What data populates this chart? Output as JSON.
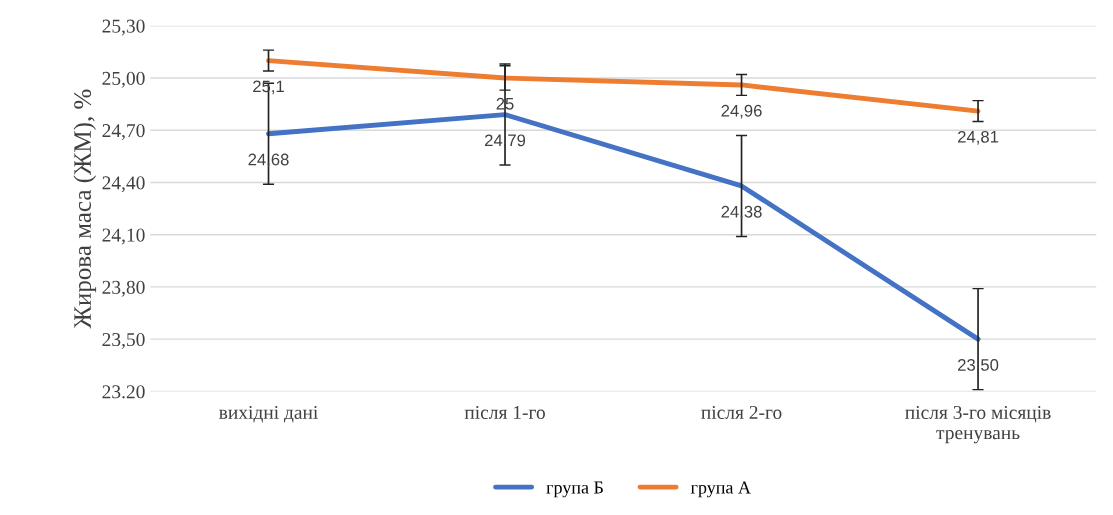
{
  "chart_data": {
    "type": "line",
    "ylabel": "Жирова маса (ЖМ), %",
    "categories": [
      "вихідні дані",
      "після 1-го",
      "після 2-го",
      "після 3-го місяців\nтренувань"
    ],
    "series": [
      {
        "name": "група Б",
        "color": "#4472c4",
        "values": [
          24.68,
          24.79,
          24.38,
          23.5
        ],
        "errors": [
          0.29,
          0.29,
          0.29,
          0.29
        ],
        "value_labels": [
          "24,68",
          "24,79",
          "24,38",
          "23,50"
        ]
      },
      {
        "name": "група А",
        "color": "#ed7d31",
        "values": [
          25.1,
          25,
          24.96,
          24.81
        ],
        "errors": [
          0.06,
          0.07,
          0.06,
          0.06
        ],
        "value_labels": [
          "25,1",
          "25",
          "24,96",
          "24,81"
        ]
      }
    ],
    "ylim": [
      23.2,
      25.3
    ],
    "yticks": [
      {
        "value": 23.2,
        "label": "23.20"
      },
      {
        "value": 23.5,
        "label": "23,50"
      },
      {
        "value": 23.8,
        "label": "23,80"
      },
      {
        "value": 24.1,
        "label": "24,10"
      },
      {
        "value": 24.4,
        "label": "24,40"
      },
      {
        "value": 24.7,
        "label": "24,70"
      },
      {
        "value": 25.0,
        "label": "25,00"
      },
      {
        "value": 25.3,
        "label": "25,30"
      }
    ],
    "grid": "y",
    "legend": "bottom",
    "marker": "none",
    "line_style": "solid"
  }
}
